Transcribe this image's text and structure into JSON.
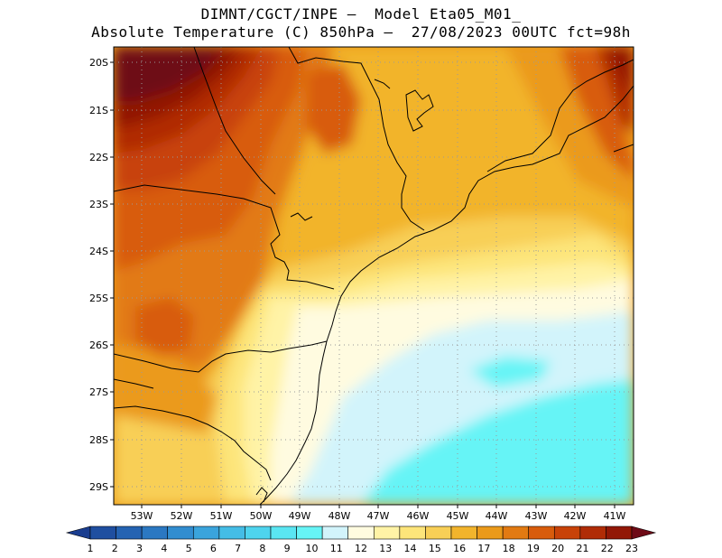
{
  "title_line1": "DIMNT/CGCT/INPE –  Model Eta05_M01_",
  "title_line2": "Absolute Temperature (C) 850hPa –  27/08/2023 00UTC fct=98h",
  "lat_labels": [
    "20S",
    "21S",
    "22S",
    "23S",
    "24S",
    "25S",
    "26S",
    "27S",
    "28S",
    "29S"
  ],
  "lon_labels": [
    "53W",
    "52W",
    "51W",
    "50W",
    "49W",
    "48W",
    "47W",
    "46W",
    "45W",
    "44W",
    "43W",
    "42W",
    "41W"
  ],
  "colorbar": {
    "labels": [
      "1",
      "2",
      "3",
      "4",
      "5",
      "6",
      "7",
      "8",
      "9",
      "10",
      "11",
      "12",
      "13",
      "14",
      "15",
      "16",
      "17",
      "18",
      "19",
      "20",
      "21",
      "22",
      "23"
    ],
    "colors": [
      "#1a3d8f",
      "#1f4fa0",
      "#2563b2",
      "#2b78c2",
      "#318dd0",
      "#3aa4dc",
      "#44bde6",
      "#4ed4ee",
      "#5ae6f2",
      "#66f4f6",
      "#d2f4fb",
      "#fffbe0",
      "#fff3a6",
      "#fde57a",
      "#f8cf56",
      "#f2b42c",
      "#eb9a1a",
      "#e27a12",
      "#d85c0c",
      "#c84208",
      "#b02c06",
      "#921806",
      "#6e0a16"
    ]
  },
  "map": {
    "region": "Southeast and South Brazil",
    "lat_range": [
      -29.4,
      -19.8
    ],
    "lon_range": [
      -53.6,
      -40.5
    ],
    "color_classes": {
      "t10": "#66f4f6",
      "t11": "#d2f4fb",
      "t12": "#fffbe0",
      "t13": "#fff3a6",
      "t14": "#fde57a",
      "t15": "#f8cf56",
      "t16": "#f2b42c",
      "t17": "#eb9a1a",
      "t18": "#e27a12",
      "t19": "#d85c0c",
      "t20": "#c84208",
      "t21": "#b02c06",
      "t22": "#921806",
      "t23": "#6e0a16"
    }
  }
}
